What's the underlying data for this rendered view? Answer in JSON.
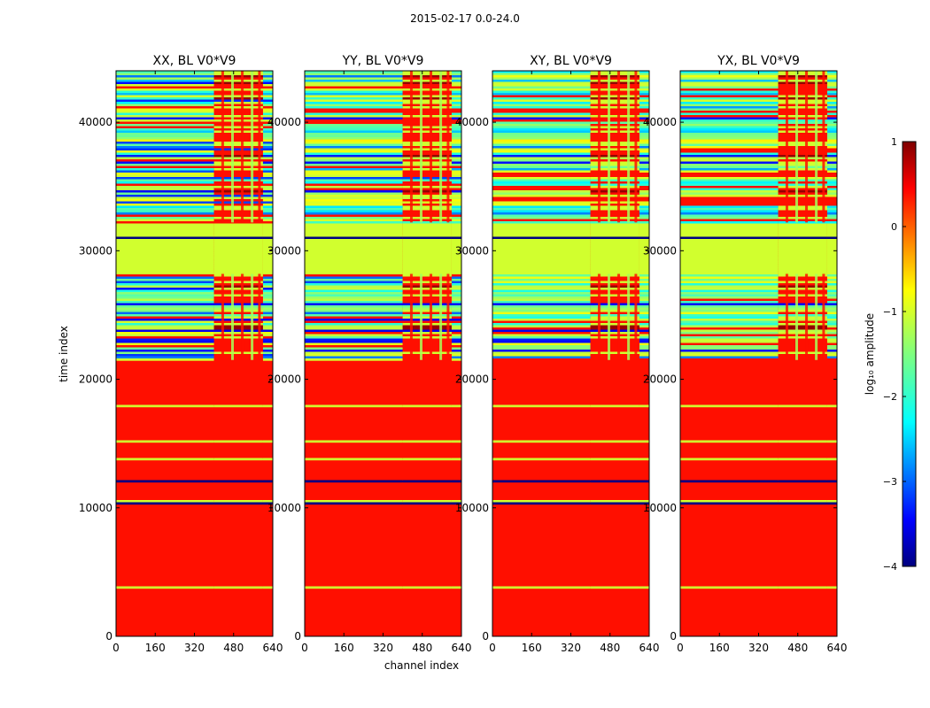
{
  "figure": {
    "title": "2015-02-17 0.0-24.0",
    "xlabel": "channel index",
    "ylabel": "time index",
    "colorbar_label": "log₁₀ amplitude"
  },
  "chart_data": {
    "type": "heatmap",
    "title": "2015-02-17 0.0-24.0",
    "xlabel": "channel index",
    "ylabel": "time index",
    "xlim": [
      0,
      640
    ],
    "ylim": [
      0,
      44000
    ],
    "xticks": [
      "0",
      "160",
      "320",
      "480",
      "640"
    ],
    "yticks": [
      "0",
      "10000",
      "20000",
      "30000",
      "40000"
    ],
    "panels": [
      {
        "title": "XX, BL V0*V9",
        "rfi_channels": [
          400,
          600
        ]
      },
      {
        "title": "YY, BL V0*V9",
        "rfi_channels": [
          400,
          600
        ]
      },
      {
        "title": "XY, BL V0*V9",
        "rfi_channels": [
          400,
          600
        ]
      },
      {
        "title": "YX, BL V0*V9",
        "rfi_channels": [
          400,
          600
        ]
      }
    ],
    "colorbar": {
      "label": "log₁₀ amplitude",
      "range": [
        -4,
        1
      ],
      "ticks": [
        "1",
        "0",
        "−1",
        "−2",
        "−3",
        "−4"
      ],
      "colormap": "jet"
    },
    "time_bands": [
      {
        "start": 0,
        "end": 21500,
        "level": 0.3,
        "description": "flat"
      },
      {
        "start": 21500,
        "end": 28200,
        "level": -2.9,
        "description": "noisy"
      },
      {
        "start": 28200,
        "end": 32200,
        "level": -1.1,
        "description": "flat"
      },
      {
        "start": 32200,
        "end": 44000,
        "level": -2.0,
        "description": "noisy"
      }
    ]
  }
}
